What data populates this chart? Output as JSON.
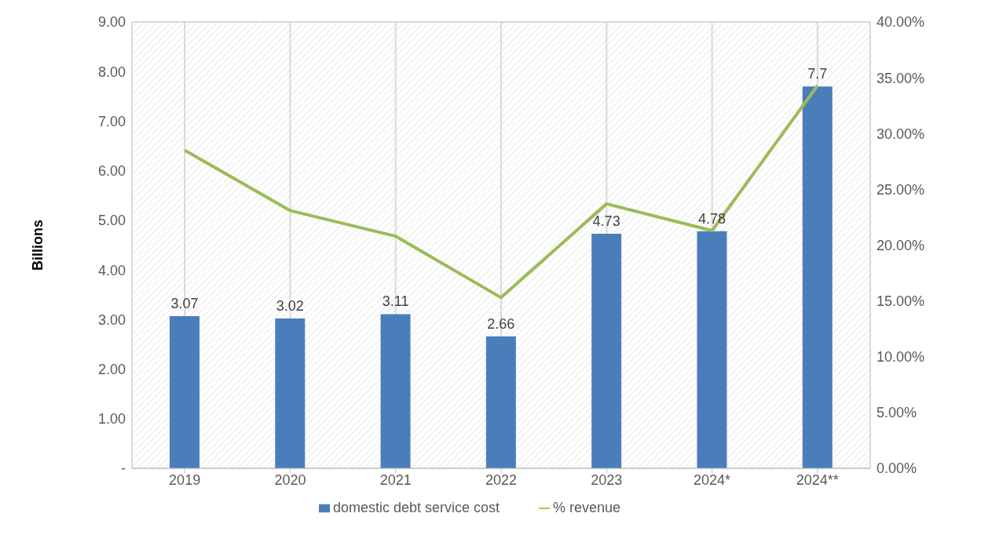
{
  "chart_data": {
    "type": "bar",
    "ylabel": "Billions",
    "categories": [
      "2019",
      "2020",
      "2021",
      "2022",
      "2023",
      "2024*",
      "2024**"
    ],
    "series": [
      {
        "name": "domestic debt service cost",
        "color": "#4a7ebb",
        "values": [
          3.07,
          3.02,
          3.11,
          2.66,
          4.73,
          4.78,
          7.7
        ],
        "value_labels": [
          "3.07",
          "3.02",
          "3.11",
          "2.66",
          "4.73",
          "4.78",
          "7.7"
        ]
      },
      {
        "name": "% revenue",
        "type": "line",
        "axis": "y2",
        "color": "#9bbb59",
        "values": [
          28.5,
          23.1,
          20.8,
          15.3,
          23.7,
          21.3,
          34.3
        ]
      }
    ],
    "ylim": [
      0,
      9
    ],
    "yticks": [
      {
        "value": 0,
        "label": "-"
      },
      {
        "value": 1,
        "label": "1.00"
      },
      {
        "value": 2,
        "label": "2.00"
      },
      {
        "value": 3,
        "label": "3.00"
      },
      {
        "value": 4,
        "label": "4.00"
      },
      {
        "value": 5,
        "label": "5.00"
      },
      {
        "value": 6,
        "label": "6.00"
      },
      {
        "value": 7,
        "label": "7.00"
      },
      {
        "value": 8,
        "label": "8.00"
      },
      {
        "value": 9,
        "label": "9.00"
      }
    ],
    "y2lim": [
      0,
      40
    ],
    "y2ticks": [
      {
        "value": 0,
        "label": "0.00%"
      },
      {
        "value": 5,
        "label": "5.00%"
      },
      {
        "value": 10,
        "label": "10.00%"
      },
      {
        "value": 15,
        "label": "15.00%"
      },
      {
        "value": 20,
        "label": "20.00%"
      },
      {
        "value": 25,
        "label": "25.00%"
      },
      {
        "value": 30,
        "label": "30.00%"
      },
      {
        "value": 35,
        "label": "35.00%"
      },
      {
        "value": 40,
        "label": "40.00%"
      }
    ],
    "grid": true,
    "legend": "bottom",
    "marker": "none",
    "line_style": "solid"
  }
}
